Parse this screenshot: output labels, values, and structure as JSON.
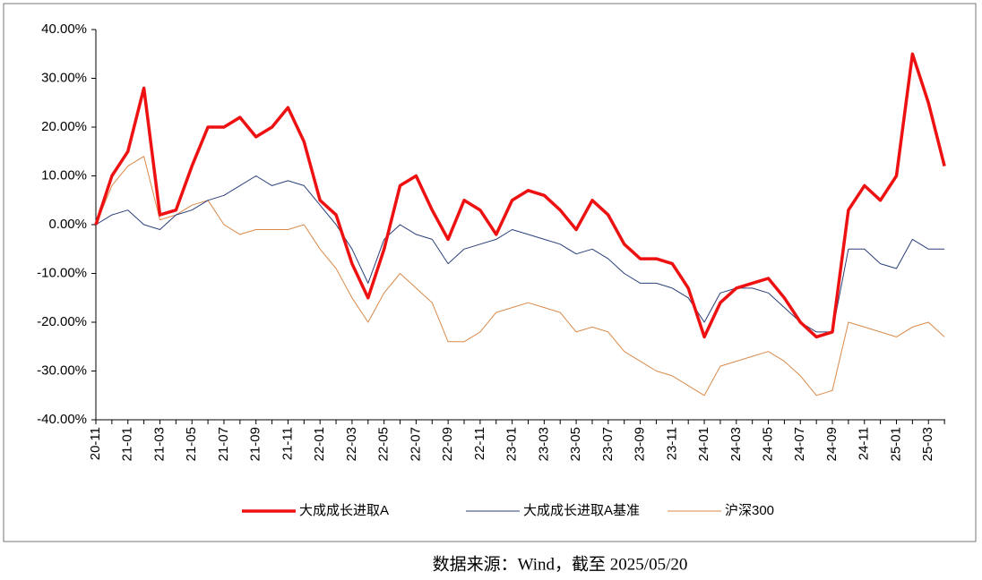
{
  "chart_data": {
    "type": "line",
    "categories": [
      "20-11",
      null,
      "21-01",
      null,
      "21-03",
      null,
      "21-05",
      null,
      "21-07",
      null,
      "21-09",
      null,
      "21-11",
      null,
      "22-01",
      null,
      "22-03",
      null,
      "22-05",
      null,
      "22-07",
      null,
      "22-09",
      null,
      "22-11",
      null,
      "23-01",
      null,
      "23-03",
      null,
      "23-05",
      null,
      "23-07",
      null,
      "23-09",
      null,
      "23-11",
      null,
      "24-01",
      null,
      "24-03",
      null,
      "24-05",
      null,
      "24-07",
      null,
      "24-09",
      null,
      "24-11",
      null,
      "25-01",
      null,
      "25-03",
      null
    ],
    "series": [
      {
        "name": "大成成长进取A",
        "color": "#ee1111",
        "width": 3.5,
        "values": [
          0,
          10,
          15,
          28,
          2,
          3,
          12,
          20,
          20,
          22,
          18,
          20,
          24,
          17,
          5,
          2,
          -8,
          -15,
          -5,
          8,
          10,
          3,
          -3,
          5,
          3,
          -2,
          5,
          7,
          6,
          3,
          -1,
          5,
          2,
          -4,
          -7,
          -7,
          -8,
          -13,
          -23,
          -16,
          -13,
          -12,
          -11,
          -15,
          -20,
          -23,
          -22,
          3,
          8,
          5,
          10,
          35,
          25,
          12
        ]
      },
      {
        "name": "大成成长进取A基准",
        "color": "#2b3f7a",
        "width": 1,
        "values": [
          0,
          2,
          3,
          0,
          -1,
          2,
          3,
          5,
          6,
          8,
          10,
          8,
          9,
          8,
          4,
          0,
          -5,
          -12,
          -3,
          0,
          -2,
          -3,
          -8,
          -5,
          -4,
          -3,
          -1,
          -2,
          -3,
          -4,
          -6,
          -5,
          -7,
          -10,
          -12,
          -12,
          -13,
          -15,
          -20,
          -14,
          -13,
          -13,
          -14,
          -17,
          -20,
          -22,
          -22,
          -5,
          -5,
          -8,
          -9,
          -3,
          -5,
          -5
        ]
      },
      {
        "name": "沪深300",
        "color": "#d98a4a",
        "width": 1,
        "values": [
          0,
          8,
          12,
          14,
          1,
          2,
          4,
          5,
          0,
          -2,
          -1,
          -1,
          -1,
          0,
          -5,
          -9,
          -15,
          -20,
          -14,
          -10,
          -13,
          -16,
          -24,
          -24,
          -22,
          -18,
          -17,
          -16,
          -17,
          -18,
          -22,
          -21,
          -22,
          -26,
          -28,
          -30,
          -31,
          -33,
          -35,
          -29,
          -28,
          -27,
          -26,
          -28,
          -31,
          -35,
          -34,
          -20,
          -21,
          -22,
          -23,
          -21,
          -20,
          -23
        ]
      }
    ],
    "ylim": [
      -40,
      40
    ],
    "yticks": [
      {
        "value": 40,
        "label": "40.00%"
      },
      {
        "value": 30,
        "label": "30.00%"
      },
      {
        "value": 20,
        "label": "20.00%"
      },
      {
        "value": 10,
        "label": "10.00%"
      },
      {
        "value": 0,
        "label": "0.00%"
      },
      {
        "value": -10,
        "label": "-10.00%"
      },
      {
        "value": -20,
        "label": "-20.00%"
      },
      {
        "value": -30,
        "label": "-30.00%"
      },
      {
        "value": -40,
        "label": "-40.00%"
      }
    ],
    "legend": "bottom",
    "source": "数据来源：Wind，截至 2025/05/20"
  }
}
